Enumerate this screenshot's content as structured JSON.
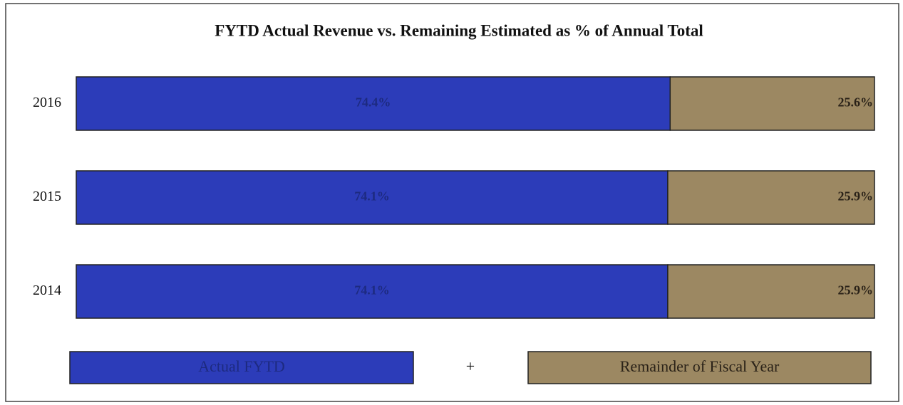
{
  "chart_data": {
    "type": "stacked-bar-horizontal",
    "title": "FYTD Actual Revenue vs. Remaining Estimated as % of Annual Total",
    "categories": [
      "2016",
      "2015",
      "2014"
    ],
    "series": [
      {
        "name": "Actual FYTD",
        "color": "#2c3cb9",
        "values": [
          74.4,
          74.1,
          74.1
        ],
        "value_labels": [
          "74.4%",
          "74.1%",
          "74.1%"
        ]
      },
      {
        "name": "Remainder of Fiscal Year",
        "color": "#9c8862",
        "values": [
          25.6,
          25.9,
          25.9
        ],
        "value_labels": [
          "25.6%",
          "25.9%",
          "25.9%"
        ]
      }
    ],
    "legend_separator": "+"
  }
}
